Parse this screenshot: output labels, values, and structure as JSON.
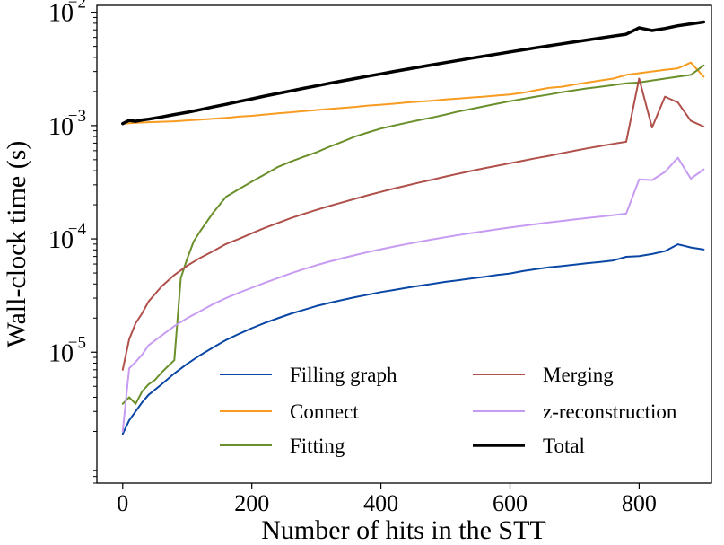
{
  "chart_data": {
    "type": "line",
    "title": "",
    "xlabel": "Number of hits in the STT",
    "ylabel": "Wall-clock time (s)",
    "xlim": [
      -40,
      912
    ],
    "ylim": [
      7e-07,
      0.0115
    ],
    "yscale": "log",
    "xticks": [
      0,
      200,
      400,
      600,
      800
    ],
    "xtick_labels": [
      "0",
      "200",
      "400",
      "600",
      "800"
    ],
    "yticks": [
      1e-05,
      0.0001,
      0.001,
      0.01
    ],
    "ytick_labels": [
      {
        "base": "10",
        "exp": "−5"
      },
      {
        "base": "10",
        "exp": "−4"
      },
      {
        "base": "10",
        "exp": "−3"
      },
      {
        "base": "10",
        "exp": "−2"
      }
    ],
    "grid": false,
    "legend_position": "lower-right",
    "series": [
      {
        "name": "Filling graph",
        "color": "#0a47a4",
        "width": 2,
        "points": [
          [
            0,
            1.9e-06
          ],
          [
            10,
            2.5e-06
          ],
          [
            20,
            3e-06
          ],
          [
            30,
            3.6e-06
          ],
          [
            40,
            4.2e-06
          ],
          [
            60,
            5.2e-06
          ],
          [
            80,
            6.5e-06
          ],
          [
            100,
            7.9e-06
          ],
          [
            120,
            9.4e-06
          ],
          [
            140,
            1.1e-05
          ],
          [
            160,
            1.28e-05
          ],
          [
            180,
            1.45e-05
          ],
          [
            200,
            1.63e-05
          ],
          [
            220,
            1.81e-05
          ],
          [
            240,
            1.99e-05
          ],
          [
            260,
            2.18e-05
          ],
          [
            280,
            2.36e-05
          ],
          [
            300,
            2.55e-05
          ],
          [
            320,
            2.72e-05
          ],
          [
            340,
            2.89e-05
          ],
          [
            360,
            3.06e-05
          ],
          [
            380,
            3.22e-05
          ],
          [
            400,
            3.39e-05
          ],
          [
            420,
            3.54e-05
          ],
          [
            440,
            3.7e-05
          ],
          [
            460,
            3.86e-05
          ],
          [
            480,
            4.01e-05
          ],
          [
            500,
            4.18e-05
          ],
          [
            520,
            4.32e-05
          ],
          [
            540,
            4.48e-05
          ],
          [
            560,
            4.62e-05
          ],
          [
            580,
            4.8e-05
          ],
          [
            600,
            4.95e-05
          ],
          [
            620,
            5.2e-05
          ],
          [
            640,
            5.4e-05
          ],
          [
            660,
            5.6e-05
          ],
          [
            680,
            5.75e-05
          ],
          [
            700,
            5.93e-05
          ],
          [
            720,
            6.1e-05
          ],
          [
            740,
            6.25e-05
          ],
          [
            760,
            6.45e-05
          ],
          [
            780,
            6.95e-05
          ],
          [
            800,
            7.05e-05
          ],
          [
            820,
            7.35e-05
          ],
          [
            840,
            7.8e-05
          ],
          [
            860,
            8.95e-05
          ],
          [
            880,
            8.4e-05
          ],
          [
            900,
            8.05e-05
          ]
        ]
      },
      {
        "name": "Connect",
        "color": "#f79c20",
        "width": 2,
        "points": [
          [
            0,
            0.00104
          ],
          [
            20,
            0.00106
          ],
          [
            40,
            0.00107
          ],
          [
            60,
            0.00108
          ],
          [
            80,
            0.00109
          ],
          [
            100,
            0.00111
          ],
          [
            120,
            0.00113
          ],
          [
            140,
            0.00115
          ],
          [
            160,
            0.00117
          ],
          [
            180,
            0.0012
          ],
          [
            200,
            0.00122
          ],
          [
            220,
            0.00125
          ],
          [
            240,
            0.00128
          ],
          [
            260,
            0.00131
          ],
          [
            280,
            0.00134
          ],
          [
            300,
            0.00137
          ],
          [
            320,
            0.0014
          ],
          [
            340,
            0.00143
          ],
          [
            360,
            0.00146
          ],
          [
            380,
            0.0015
          ],
          [
            400,
            0.00153
          ],
          [
            420,
            0.00156
          ],
          [
            440,
            0.0016
          ],
          [
            460,
            0.00163
          ],
          [
            480,
            0.00166
          ],
          [
            500,
            0.0017
          ],
          [
            520,
            0.00173
          ],
          [
            540,
            0.00177
          ],
          [
            560,
            0.0018
          ],
          [
            580,
            0.00184
          ],
          [
            600,
            0.00188
          ],
          [
            620,
            0.00195
          ],
          [
            640,
            0.00205
          ],
          [
            660,
            0.00215
          ],
          [
            680,
            0.0022
          ],
          [
            700,
            0.0023
          ],
          [
            720,
            0.0024
          ],
          [
            740,
            0.0025
          ],
          [
            760,
            0.0026
          ],
          [
            780,
            0.0028
          ],
          [
            800,
            0.0029
          ],
          [
            820,
            0.003
          ],
          [
            840,
            0.0031
          ],
          [
            860,
            0.0032
          ],
          [
            880,
            0.0036
          ],
          [
            900,
            0.0027
          ]
        ]
      },
      {
        "name": "Fitting",
        "color": "#6a8f2b",
        "width": 2,
        "points": [
          [
            0,
            3.5e-06
          ],
          [
            10,
            4e-06
          ],
          [
            20,
            3.5e-06
          ],
          [
            30,
            4.5e-06
          ],
          [
            40,
            5.2e-06
          ],
          [
            50,
            5.7e-06
          ],
          [
            60,
            6.6e-06
          ],
          [
            70,
            7.5e-06
          ],
          [
            80,
            8.5e-06
          ],
          [
            90,
            4.5e-05
          ],
          [
            100,
            6.7e-05
          ],
          [
            110,
            9.5e-05
          ],
          [
            120,
            0.000117
          ],
          [
            140,
            0.00017
          ],
          [
            160,
            0.000235
          ],
          [
            180,
            0.000275
          ],
          [
            200,
            0.00032
          ],
          [
            220,
            0.00037
          ],
          [
            240,
            0.00043
          ],
          [
            260,
            0.00048
          ],
          [
            280,
            0.00053
          ],
          [
            300,
            0.00058
          ],
          [
            320,
            0.00065
          ],
          [
            340,
            0.00072
          ],
          [
            360,
            0.0008
          ],
          [
            380,
            0.00087
          ],
          [
            400,
            0.00094
          ],
          [
            420,
            0.001
          ],
          [
            440,
            0.00106
          ],
          [
            460,
            0.00112
          ],
          [
            480,
            0.00118
          ],
          [
            500,
            0.00125
          ],
          [
            520,
            0.00133
          ],
          [
            540,
            0.0014
          ],
          [
            560,
            0.00148
          ],
          [
            580,
            0.00156
          ],
          [
            600,
            0.00164
          ],
          [
            620,
            0.00172
          ],
          [
            640,
            0.0018
          ],
          [
            660,
            0.00188
          ],
          [
            680,
            0.00197
          ],
          [
            700,
            0.00205
          ],
          [
            720,
            0.00213
          ],
          [
            740,
            0.0022
          ],
          [
            760,
            0.00228
          ],
          [
            780,
            0.00236
          ],
          [
            800,
            0.0024
          ],
          [
            820,
            0.0025
          ],
          [
            840,
            0.0026
          ],
          [
            860,
            0.0027
          ],
          [
            880,
            0.0028
          ],
          [
            900,
            0.0034
          ]
        ]
      },
      {
        "name": "Merging",
        "color": "#b0504b",
        "width": 2,
        "points": [
          [
            0,
            7e-06
          ],
          [
            10,
            1.3e-05
          ],
          [
            20,
            1.8e-05
          ],
          [
            30,
            2.2e-05
          ],
          [
            40,
            2.8e-05
          ],
          [
            60,
            3.8e-05
          ],
          [
            80,
            4.8e-05
          ],
          [
            100,
            5.8e-05
          ],
          [
            120,
            6.8e-05
          ],
          [
            140,
            7.8e-05
          ],
          [
            160,
            9e-05
          ],
          [
            180,
            0.0001
          ],
          [
            200,
            0.000112
          ],
          [
            220,
            0.000125
          ],
          [
            240,
            0.000138
          ],
          [
            260,
            0.000152
          ],
          [
            280,
            0.000166
          ],
          [
            300,
            0.00018
          ],
          [
            320,
            0.000195
          ],
          [
            340,
            0.00021
          ],
          [
            360,
            0.000226
          ],
          [
            380,
            0.000243
          ],
          [
            400,
            0.00026
          ],
          [
            420,
            0.000278
          ],
          [
            440,
            0.000296
          ],
          [
            460,
            0.000315
          ],
          [
            480,
            0.000334
          ],
          [
            500,
            0.000355
          ],
          [
            520,
            0.000376
          ],
          [
            540,
            0.000398
          ],
          [
            560,
            0.00042
          ],
          [
            580,
            0.000442
          ],
          [
            600,
            0.000465
          ],
          [
            620,
            0.00049
          ],
          [
            640,
            0.000515
          ],
          [
            660,
            0.00054
          ],
          [
            680,
            0.00057
          ],
          [
            700,
            0.0006
          ],
          [
            720,
            0.00063
          ],
          [
            740,
            0.00066
          ],
          [
            760,
            0.00069
          ],
          [
            780,
            0.00072
          ],
          [
            800,
            0.0026
          ],
          [
            820,
            0.00096
          ],
          [
            840,
            0.0018
          ],
          [
            860,
            0.0016
          ],
          [
            880,
            0.0011
          ],
          [
            900,
            0.00098
          ]
        ]
      },
      {
        "name": "z-reconstruction",
        "color": "#c79bf2",
        "width": 2,
        "points": [
          [
            0,
            2e-06
          ],
          [
            10,
            7.2e-06
          ],
          [
            20,
            8.2e-06
          ],
          [
            30,
            9.5e-06
          ],
          [
            40,
            1.15e-05
          ],
          [
            60,
            1.4e-05
          ],
          [
            80,
            1.7e-05
          ],
          [
            100,
            2e-05
          ],
          [
            120,
            2.3e-05
          ],
          [
            140,
            2.65e-05
          ],
          [
            160,
            3e-05
          ],
          [
            180,
            3.35e-05
          ],
          [
            200,
            3.7e-05
          ],
          [
            220,
            4.1e-05
          ],
          [
            240,
            4.5e-05
          ],
          [
            260,
            4.95e-05
          ],
          [
            280,
            5.4e-05
          ],
          [
            300,
            5.85e-05
          ],
          [
            320,
            6.3e-05
          ],
          [
            340,
            6.75e-05
          ],
          [
            360,
            7.2e-05
          ],
          [
            380,
            7.65e-05
          ],
          [
            400,
            8.1e-05
          ],
          [
            420,
            8.55e-05
          ],
          [
            440,
            9e-05
          ],
          [
            460,
            9.45e-05
          ],
          [
            480,
            9.9e-05
          ],
          [
            500,
            0.0001035
          ],
          [
            520,
            0.000108
          ],
          [
            540,
            0.0001125
          ],
          [
            560,
            0.000117
          ],
          [
            580,
            0.0001215
          ],
          [
            600,
            0.000126
          ],
          [
            620,
            0.0001305
          ],
          [
            640,
            0.000135
          ],
          [
            660,
            0.0001395
          ],
          [
            680,
            0.000144
          ],
          [
            700,
            0.0001485
          ],
          [
            720,
            0.000153
          ],
          [
            740,
            0.0001575
          ],
          [
            760,
            0.000162
          ],
          [
            780,
            0.000167
          ],
          [
            800,
            0.000335
          ],
          [
            820,
            0.00033
          ],
          [
            840,
            0.00039
          ],
          [
            860,
            0.00052
          ],
          [
            880,
            0.00034
          ],
          [
            900,
            0.00041
          ]
        ]
      },
      {
        "name": "Total",
        "color": "#000000",
        "width": 3.5,
        "points": [
          [
            0,
            0.00104
          ],
          [
            10,
            0.00111
          ],
          [
            20,
            0.00109
          ],
          [
            30,
            0.00112
          ],
          [
            40,
            0.00114
          ],
          [
            60,
            0.00119
          ],
          [
            80,
            0.00125
          ],
          [
            100,
            0.00131
          ],
          [
            120,
            0.00138
          ],
          [
            140,
            0.00146
          ],
          [
            160,
            0.00154
          ],
          [
            180,
            0.00163
          ],
          [
            200,
            0.00172
          ],
          [
            220,
            0.00182
          ],
          [
            240,
            0.00192
          ],
          [
            260,
            0.00202
          ],
          [
            280,
            0.00213
          ],
          [
            300,
            0.00224
          ],
          [
            320,
            0.00236
          ],
          [
            340,
            0.00248
          ],
          [
            360,
            0.0026
          ],
          [
            380,
            0.00273
          ],
          [
            400,
            0.00286
          ],
          [
            420,
            0.003
          ],
          [
            440,
            0.00314
          ],
          [
            460,
            0.00329
          ],
          [
            480,
            0.00344
          ],
          [
            500,
            0.0036
          ],
          [
            520,
            0.00376
          ],
          [
            540,
            0.00393
          ],
          [
            560,
            0.0041
          ],
          [
            580,
            0.00428
          ],
          [
            600,
            0.00447
          ],
          [
            620,
            0.00466
          ],
          [
            640,
            0.00486
          ],
          [
            660,
            0.00506
          ],
          [
            680,
            0.00527
          ],
          [
            700,
            0.00548
          ],
          [
            720,
            0.0057
          ],
          [
            740,
            0.00593
          ],
          [
            760,
            0.00616
          ],
          [
            780,
            0.0064
          ],
          [
            800,
            0.0073
          ],
          [
            820,
            0.0069
          ],
          [
            840,
            0.0072
          ],
          [
            860,
            0.0076
          ],
          [
            880,
            0.0079
          ],
          [
            900,
            0.0082
          ]
        ]
      }
    ]
  }
}
